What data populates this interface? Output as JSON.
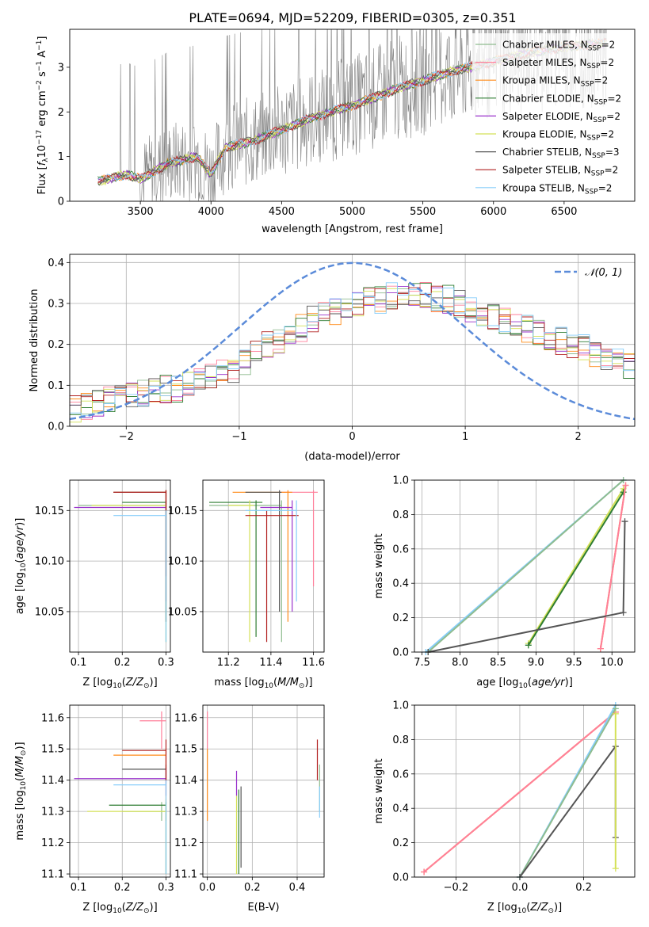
{
  "figure": {
    "title": "PLATE=0694, MJD=52209, FIBERID=0305, z=0.351"
  },
  "colors": {
    "Chabrier MILES": "#8fbc8f",
    "Salpeter MILES": "#ff7f9a",
    "Kroupa MILES": "#ff8c1a",
    "Chabrier ELODIE": "#2e7d32",
    "Salpeter ELODIE": "#9932cc",
    "Kroupa ELODIE": "#d4e157",
    "Chabrier STELIB": "#555555",
    "Salpeter STELIB": "#b22222",
    "Kroupa STELIB": "#87cefa",
    "observed": "#808080",
    "normal_curve": "#5b8bd9"
  },
  "chart_data": [
    {
      "id": "spectrum",
      "type": "line",
      "xlabel": "wavelength [Angstrom, rest frame]",
      "ylabel": "Flux [f_λ 10^-17 erg cm^-2 s^-1 A^-1]",
      "xlim": [
        3000,
        7000
      ],
      "ylim": [
        0,
        3.85
      ],
      "xticks": [
        3500,
        4000,
        4500,
        5000,
        5500,
        6000,
        6500
      ],
      "yticks": [
        0,
        1,
        2,
        3
      ],
      "grid": false,
      "legend_position": "right",
      "observed_range": [
        3200,
        6800
      ],
      "model_continuum": {
        "x": [
          3200,
          3400,
          3500,
          3700,
          3900,
          4000,
          4100,
          4300,
          4500,
          4700,
          4900,
          5100,
          5300,
          5500,
          5700,
          5900,
          6100,
          6300,
          6500,
          6800
        ],
        "y": [
          0.45,
          0.6,
          0.5,
          0.85,
          1.0,
          0.6,
          1.2,
          1.35,
          1.6,
          1.85,
          2.05,
          2.25,
          2.5,
          2.7,
          2.9,
          3.05,
          3.2,
          3.35,
          3.45,
          3.55
        ]
      },
      "legend": [
        {
          "label": "Chabrier MILES, N",
          "sub": "SSP",
          "tail": "=2"
        },
        {
          "label": "Salpeter MILES, N",
          "sub": "SSP",
          "tail": "=2"
        },
        {
          "label": "Kroupa MILES, N",
          "sub": "SSP",
          "tail": "=2"
        },
        {
          "label": "Chabrier ELODIE, N",
          "sub": "SSP",
          "tail": "=2"
        },
        {
          "label": "Salpeter ELODIE, N",
          "sub": "SSP",
          "tail": "=2"
        },
        {
          "label": "Kroupa ELODIE, N",
          "sub": "SSP",
          "tail": "=2"
        },
        {
          "label": "Chabrier STELIB, N",
          "sub": "SSP",
          "tail": "=3"
        },
        {
          "label": "Salpeter STELIB, N",
          "sub": "SSP",
          "tail": "=2"
        },
        {
          "label": "Kroupa STELIB, N",
          "sub": "SSP",
          "tail": "=2"
        }
      ]
    },
    {
      "id": "residuals",
      "type": "line",
      "xlabel": "(data-model)/error",
      "ylabel": "Normed distribution",
      "xlim": [
        -2.5,
        2.5
      ],
      "ylim": [
        0,
        0.42
      ],
      "xticks": [
        -2,
        -1,
        0,
        1,
        2
      ],
      "yticks": [
        0.0,
        0.1,
        0.2,
        0.3,
        0.4
      ],
      "grid": true,
      "legend_position": "top-right",
      "legend": "𝒩(0, 1)",
      "histogram_bins": {
        "start": -2.5,
        "width": 0.1,
        "mean_values": [
          0.04,
          0.05,
          0.055,
          0.065,
          0.07,
          0.075,
          0.08,
          0.085,
          0.09,
          0.09,
          0.1,
          0.11,
          0.12,
          0.13,
          0.14,
          0.16,
          0.18,
          0.2,
          0.21,
          0.23,
          0.24,
          0.26,
          0.27,
          0.28,
          0.29,
          0.3,
          0.31,
          0.31,
          0.32,
          0.32,
          0.32,
          0.32,
          0.31,
          0.31,
          0.3,
          0.29,
          0.28,
          0.27,
          0.26,
          0.25,
          0.24,
          0.23,
          0.22,
          0.21,
          0.2,
          0.19,
          0.18,
          0.17,
          0.16,
          0.15
        ]
      }
    },
    {
      "id": "age_vs_Z",
      "type": "scatter",
      "xlabel": "Z [log10(Z/Z⊙)]",
      "ylabel": "age [log10(age/yr)]",
      "xlim": [
        0.08,
        0.31
      ],
      "ylim": [
        10.01,
        10.18
      ],
      "xticks": [
        0.1,
        0.2,
        0.3
      ],
      "yticks": [
        10.05,
        10.1,
        10.15
      ],
      "grid": true,
      "errorbars": [
        {
          "series": "Chabrier MILES",
          "x": 0.3,
          "y": 10.155,
          "xlo": 0.1,
          "xhi": 0.3,
          "ylo": 10.02,
          "yhi": 10.17
        },
        {
          "series": "Salpeter MILES",
          "x": 0.3,
          "y": 10.168,
          "xlo": 0.18,
          "xhi": 0.3,
          "ylo": 10.06,
          "yhi": 10.17
        },
        {
          "series": "Kroupa MILES",
          "x": 0.3,
          "y": 10.168,
          "xlo": 0.18,
          "xhi": 0.3,
          "ylo": 10.04,
          "yhi": 10.17
        },
        {
          "series": "Chabrier ELODIE",
          "x": 0.3,
          "y": 10.158,
          "xlo": 0.2,
          "xhi": 0.3,
          "ylo": 10.04,
          "yhi": 10.16
        },
        {
          "series": "Salpeter ELODIE",
          "x": 0.3,
          "y": 10.153,
          "xlo": 0.09,
          "xhi": 0.3,
          "ylo": 10.06,
          "yhi": 10.16
        },
        {
          "series": "Kroupa ELODIE",
          "x": 0.3,
          "y": 10.155,
          "xlo": 0.13,
          "xhi": 0.3,
          "ylo": 10.02,
          "yhi": 10.16
        },
        {
          "series": "Chabrier STELIB",
          "x": 0.3,
          "y": 10.168,
          "xlo": 0.18,
          "xhi": 0.3,
          "ylo": 10.04,
          "yhi": 10.17
        },
        {
          "series": "Salpeter STELIB",
          "x": 0.3,
          "y": 10.168,
          "xlo": 0.18,
          "xhi": 0.3,
          "ylo": 10.085,
          "yhi": 10.17
        },
        {
          "series": "Kroupa STELIB",
          "x": 0.3,
          "y": 10.145,
          "xlo": 0.18,
          "xhi": 0.3,
          "ylo": 10.02,
          "yhi": 10.15
        }
      ]
    },
    {
      "id": "age_vs_mass",
      "type": "scatter",
      "xlabel": "mass [log10(M/M⊙)]",
      "ylabel": "",
      "xlim": [
        11.08,
        11.65
      ],
      "ylim": [
        10.01,
        10.18
      ],
      "xticks": [
        11.2,
        11.4,
        11.6
      ],
      "yticks": [
        10.05,
        10.1,
        10.15
      ],
      "grid": true,
      "errorbars": [
        {
          "series": "Chabrier MILES",
          "x": 11.45,
          "y": 10.155,
          "xlo": 11.11,
          "xhi": 11.45,
          "ylo": 10.02,
          "yhi": 10.16
        },
        {
          "series": "Salpeter MILES",
          "x": 11.6,
          "y": 10.168,
          "xlo": 11.45,
          "xhi": 11.62,
          "ylo": 10.075,
          "yhi": 10.17
        },
        {
          "series": "Kroupa MILES",
          "x": 11.48,
          "y": 10.168,
          "xlo": 11.22,
          "xhi": 11.5,
          "ylo": 10.04,
          "yhi": 10.17
        },
        {
          "series": "Chabrier ELODIE",
          "x": 11.33,
          "y": 10.158,
          "xlo": 11.11,
          "xhi": 11.36,
          "ylo": 10.025,
          "yhi": 10.16
        },
        {
          "series": "Salpeter ELODIE",
          "x": 11.5,
          "y": 10.153,
          "xlo": 11.35,
          "xhi": 11.5,
          "ylo": 10.05,
          "yhi": 10.16
        },
        {
          "series": "Kroupa ELODIE",
          "x": 11.3,
          "y": 10.155,
          "xlo": 11.2,
          "xhi": 11.32,
          "ylo": 10.02,
          "yhi": 10.16
        },
        {
          "series": "Chabrier STELIB",
          "x": 11.44,
          "y": 10.168,
          "xlo": 11.28,
          "xhi": 11.45,
          "ylo": 10.05,
          "yhi": 10.17
        },
        {
          "series": "Salpeter STELIB",
          "x": 11.38,
          "y": 10.145,
          "xlo": 11.28,
          "xhi": 11.53,
          "ylo": 10.02,
          "yhi": 10.15
        },
        {
          "series": "Kroupa STELIB",
          "x": 11.52,
          "y": 10.15,
          "xlo": 11.28,
          "xhi": 11.52,
          "ylo": 10.06,
          "yhi": 10.16
        }
      ]
    },
    {
      "id": "mass_weight_vs_age",
      "type": "line",
      "xlabel": "age [log10(age/yr)]",
      "ylabel": "mass weight",
      "xlim": [
        7.4,
        10.3
      ],
      "ylim": [
        0.0,
        1.0
      ],
      "xticks": [
        7.5,
        8.0,
        8.5,
        9.0,
        9.5,
        10.0
      ],
      "yticks": [
        0.0,
        0.2,
        0.4,
        0.6,
        0.8,
        1.0
      ],
      "grid": true,
      "series": [
        {
          "series": "Kroupa STELIB",
          "x": [
            7.55,
            10.15
          ],
          "y": [
            0.0,
            1.0
          ]
        },
        {
          "series": "Chabrier MILES",
          "x": [
            7.58,
            10.15
          ],
          "y": [
            0.0,
            1.0
          ]
        },
        {
          "series": "Kroupa ELODIE",
          "x": [
            8.9,
            10.15
          ],
          "y": [
            0.05,
            0.95
          ]
        },
        {
          "series": "Chabrier ELODIE",
          "x": [
            8.9,
            10.15
          ],
          "y": [
            0.04,
            0.93
          ]
        },
        {
          "series": "Kroupa MILES",
          "x": [
            9.85,
            10.18
          ],
          "y": [
            0.02,
            0.97
          ]
        },
        {
          "series": "Salpeter MILES",
          "x": [
            9.85,
            10.18
          ],
          "y": [
            0.02,
            0.97
          ]
        },
        {
          "series": "Chabrier STELIB",
          "x": [
            7.58,
            10.15,
            10.17
          ],
          "y": [
            0.0,
            0.23,
            0.76
          ]
        }
      ]
    },
    {
      "id": "mass_vs_Z",
      "type": "scatter",
      "xlabel": "Z [log10(Z/Z⊙)]",
      "ylabel": "mass [log10(M/M⊙)]",
      "xlim": [
        0.08,
        0.31
      ],
      "ylim": [
        11.09,
        11.64
      ],
      "xticks": [
        0.1,
        0.2,
        0.3
      ],
      "yticks": [
        11.1,
        11.2,
        11.3,
        11.4,
        11.5,
        11.6
      ],
      "grid": true,
      "errorbars": [
        {
          "series": "Chabrier MILES",
          "x": 0.29,
          "y": 11.3,
          "xlo": 0.2,
          "xhi": 0.3,
          "ylo": 11.27,
          "yhi": 11.33
        },
        {
          "series": "Salpeter MILES",
          "x": 0.29,
          "y": 11.59,
          "xlo": 0.24,
          "xhi": 0.3,
          "ylo": 11.5,
          "yhi": 11.62
        },
        {
          "series": "Kroupa MILES",
          "x": 0.3,
          "y": 11.48,
          "xlo": 0.18,
          "xhi": 0.3,
          "ylo": 11.27,
          "yhi": 11.5
        },
        {
          "series": "Chabrier ELODIE",
          "x": 0.3,
          "y": 11.32,
          "xlo": 0.17,
          "xhi": 0.3,
          "ylo": 11.1,
          "yhi": 11.33
        },
        {
          "series": "Salpeter ELODIE",
          "x": 0.3,
          "y": 11.405,
          "xlo": 0.09,
          "xhi": 0.3,
          "ylo": 11.35,
          "yhi": 11.44
        },
        {
          "series": "Kroupa ELODIE",
          "x": 0.3,
          "y": 11.3,
          "xlo": 0.12,
          "xhi": 0.3,
          "ylo": 11.1,
          "yhi": 11.34
        },
        {
          "series": "Chabrier STELIB",
          "x": 0.3,
          "y": 11.435,
          "xlo": 0.2,
          "xhi": 0.3,
          "ylo": 11.4,
          "yhi": 11.45
        },
        {
          "series": "Salpeter STELIB",
          "x": 0.3,
          "y": 11.495,
          "xlo": 0.2,
          "xhi": 0.3,
          "ylo": 11.4,
          "yhi": 11.53
        },
        {
          "series": "Kroupa STELIB",
          "x": 0.3,
          "y": 11.385,
          "xlo": 0.18,
          "xhi": 0.3,
          "ylo": 11.1,
          "yhi": 11.4
        }
      ]
    },
    {
      "id": "mass_vs_ebv",
      "type": "scatter",
      "xlabel": "E(B-V)",
      "ylabel": "",
      "xlim": [
        -0.02,
        0.52
      ],
      "ylim": [
        11.09,
        11.64
      ],
      "xticks": [
        0.0,
        0.2,
        0.4
      ],
      "yticks": [
        11.1,
        11.2,
        11.3,
        11.4,
        11.5,
        11.6
      ],
      "grid": true,
      "errorbars": [
        {
          "series": "Salpeter MILES",
          "x": 0.0,
          "y": 11.55,
          "ylo": 11.5,
          "yhi": 11.62
        },
        {
          "series": "Kroupa MILES",
          "x": 0.0,
          "y": 11.4,
          "ylo": 11.27,
          "yhi": 11.5
        },
        {
          "series": "Salpeter ELODIE",
          "x": 0.13,
          "y": 11.4,
          "ylo": 11.35,
          "yhi": 11.43
        },
        {
          "series": "Kroupa ELODIE",
          "x": 0.13,
          "y": 11.25,
          "ylo": 11.1,
          "yhi": 11.35
        },
        {
          "series": "Chabrier ELODIE",
          "x": 0.14,
          "y": 11.25,
          "ylo": 11.1,
          "yhi": 11.37
        },
        {
          "series": "Chabrier STELIB",
          "x": 0.15,
          "y": 11.25,
          "ylo": 11.12,
          "yhi": 11.38
        },
        {
          "series": "Salpeter STELIB",
          "x": 0.49,
          "y": 11.45,
          "ylo": 11.4,
          "yhi": 11.53
        },
        {
          "series": "Chabrier MILES",
          "x": 0.5,
          "y": 11.35,
          "ylo": 11.3,
          "yhi": 11.45
        },
        {
          "series": "Kroupa STELIB",
          "x": 0.5,
          "y": 11.33,
          "ylo": 11.28,
          "yhi": 11.38
        }
      ]
    },
    {
      "id": "mass_weight_vs_Z",
      "type": "line",
      "xlabel": "Z [log10(Z/Z⊙)]",
      "ylabel": "mass weight",
      "xlim": [
        -0.33,
        0.36
      ],
      "ylim": [
        0.0,
        1.0
      ],
      "xticks": [
        -0.2,
        0.0,
        0.2
      ],
      "yticks": [
        0.0,
        0.2,
        0.4,
        0.6,
        0.8,
        1.0
      ],
      "grid": true,
      "series": [
        {
          "series": "Kroupa MILES",
          "x": [
            -0.3,
            0.3
          ],
          "y": [
            0.03,
            0.96
          ]
        },
        {
          "series": "Salpeter MILES",
          "x": [
            -0.3,
            0.3
          ],
          "y": [
            0.03,
            0.96
          ]
        },
        {
          "series": "Kroupa STELIB",
          "x": [
            0.0,
            0.3
          ],
          "y": [
            0.0,
            1.0
          ]
        },
        {
          "series": "Chabrier MILES",
          "x": [
            0.0,
            0.3
          ],
          "y": [
            0.0,
            0.98
          ]
        },
        {
          "series": "Chabrier STELIB",
          "x": [
            0.0,
            0.3,
            0.3
          ],
          "y": [
            0.0,
            0.76,
            0.23
          ]
        },
        {
          "series": "Kroupa ELODIE",
          "x": [
            0.3,
            0.3
          ],
          "y": [
            0.05,
            0.95
          ]
        }
      ]
    }
  ]
}
